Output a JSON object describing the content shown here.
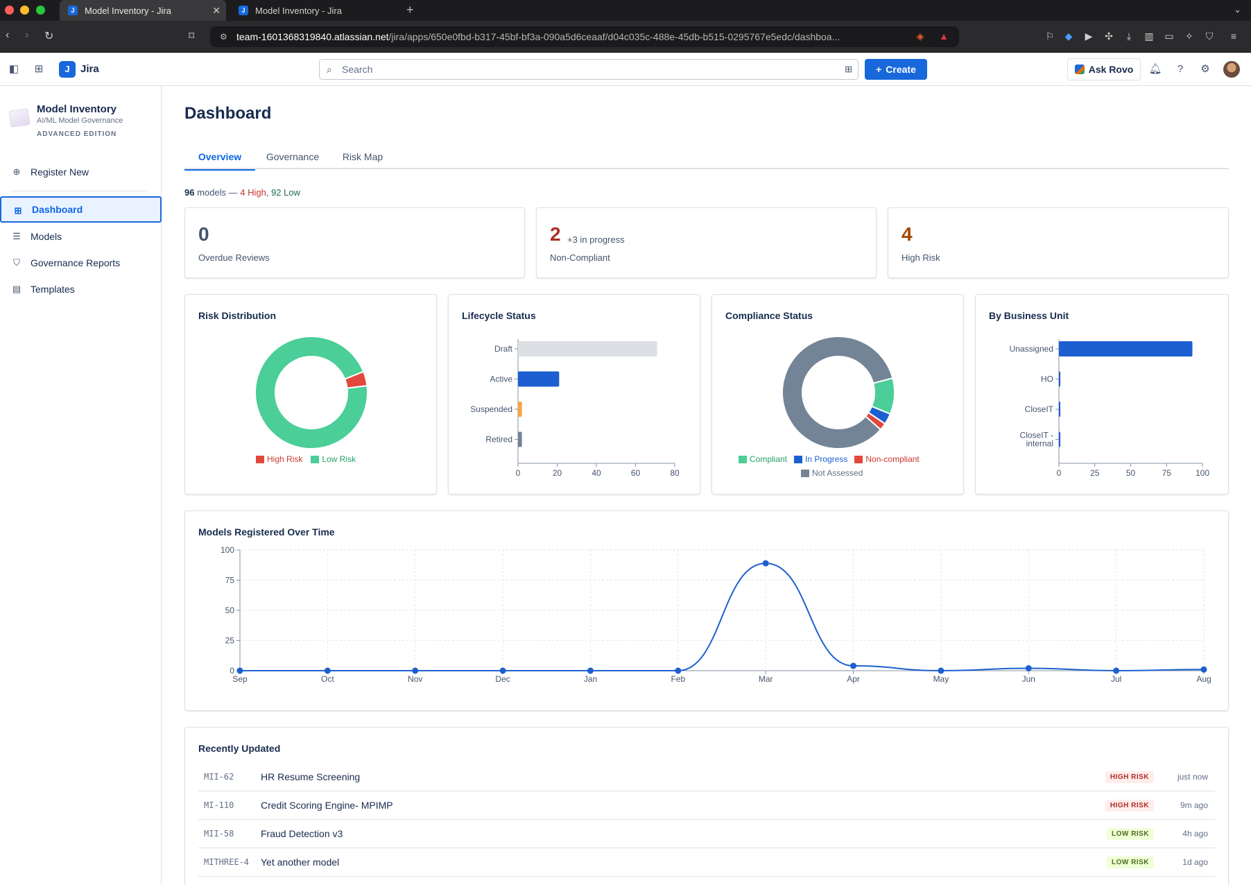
{
  "browser": {
    "tabs": [
      {
        "title": "Model Inventory - Jira"
      },
      {
        "title": "Model Inventory - Jira"
      }
    ],
    "url_host": "team-1601368319840.atlassian.net",
    "url_path": "/jira/apps/650e0fbd-b317-45bf-bf3a-090a5d6ceaaf/d04c035c-488e-45db-b515-0295767e5edc/dashboa..."
  },
  "topnav": {
    "product": "Jira",
    "search_placeholder": "Search",
    "create_label": "Create",
    "rovo_label": "Ask Rovo"
  },
  "sidebar": {
    "app_title": "Model Inventory",
    "app_subtitle": "AI/ML Model Governance",
    "app_edition": "ADVANCED EDITION",
    "register_label": "Register New",
    "items": [
      {
        "label": "Dashboard",
        "icon": "grid-icon",
        "active": true
      },
      {
        "label": "Models",
        "icon": "list-icon"
      },
      {
        "label": "Governance Reports",
        "icon": "shield-icon"
      },
      {
        "label": "Templates",
        "icon": "document-icon"
      }
    ]
  },
  "main": {
    "title": "Dashboard",
    "tabs": [
      {
        "label": "Overview",
        "active": true
      },
      {
        "label": "Governance"
      },
      {
        "label": "Risk Map"
      }
    ],
    "summary": {
      "count": "96",
      "models_word": "models",
      "sep": " — ",
      "high": "4 High",
      "comma": ",",
      "low": "92 Low"
    },
    "stats": [
      {
        "value": "0",
        "label": "Overdue Reviews",
        "color": "#44546f"
      },
      {
        "value": "2",
        "extra": "+3 in progress",
        "label": "Non-Compliant",
        "color": "#ae2e24"
      },
      {
        "value": "4",
        "label": "High Risk",
        "color": "#a54800"
      }
    ],
    "recent_title": "Recently Updated",
    "recent": [
      {
        "key": "MII-62",
        "name": "HR Resume Screening",
        "badge": "HIGH RISK",
        "level": "high",
        "time": "just now"
      },
      {
        "key": "MI-110",
        "name": "Credit Scoring Engine- MPIMP",
        "badge": "HIGH RISK",
        "level": "high",
        "time": "9m ago"
      },
      {
        "key": "MII-58",
        "name": "Fraud Detection v3",
        "badge": "LOW RISK",
        "level": "low",
        "time": "4h ago"
      },
      {
        "key": "MITHREE-4",
        "name": "Yet another model",
        "badge": "LOW RISK",
        "level": "low",
        "time": "1d ago"
      }
    ]
  },
  "chart_data": [
    {
      "type": "pie",
      "donut": true,
      "title": "Risk Distribution",
      "labels": [
        "High Risk",
        "Low Risk"
      ],
      "values": [
        4,
        92
      ],
      "colors": [
        "#e2483d",
        "#4bce97"
      ],
      "legend": "bottom"
    },
    {
      "type": "bar",
      "orientation": "horizontal",
      "title": "Lifecycle Status",
      "categories": [
        "Draft",
        "Active",
        "Suspended",
        "Retired"
      ],
      "values": [
        71,
        21,
        2,
        2
      ],
      "colors": [
        "#dcdfe4",
        "#1d5fd1",
        "#faa53d",
        "#738496"
      ],
      "xlim": [
        0,
        80
      ],
      "xticks": [
        "0",
        "20",
        "40",
        "60",
        "80"
      ],
      "grid": false
    },
    {
      "type": "pie",
      "donut": true,
      "title": "Compliance Status",
      "labels": [
        "Compliant",
        "In Progress",
        "Non-compliant",
        "Not Assessed"
      ],
      "values": [
        10,
        3,
        2,
        81
      ],
      "colors": [
        "#4bce97",
        "#1d5fd1",
        "#e2483d",
        "#738496"
      ],
      "legend": "bottom"
    },
    {
      "type": "bar",
      "orientation": "horizontal",
      "title": "By Business Unit",
      "categories": [
        "Unassigned",
        "HO",
        "CloseIT",
        "CloseIT - internal"
      ],
      "values": [
        93,
        1,
        1,
        1
      ],
      "colors": [
        "#1d5fd1",
        "#1d5fd1",
        "#1d5fd1",
        "#1d5fd1"
      ],
      "xlim": [
        0,
        100
      ],
      "xticks": [
        "0",
        "25",
        "50",
        "75",
        "100"
      ],
      "grid": false
    },
    {
      "type": "line",
      "title": "Models Registered Over Time",
      "categories": [
        "Sep",
        "Oct",
        "Nov",
        "Dec",
        "Jan",
        "Feb",
        "Mar",
        "Apr",
        "May",
        "Jun",
        "Jul",
        "Aug"
      ],
      "values": [
        0,
        0,
        0,
        0,
        0,
        0,
        89,
        4,
        0,
        2,
        0,
        1
      ],
      "ylim": [
        0,
        100
      ],
      "yticks": [
        "0",
        "25",
        "50",
        "75",
        "100"
      ],
      "color": "#1d5fd1",
      "grid": true,
      "smooth": true
    }
  ]
}
